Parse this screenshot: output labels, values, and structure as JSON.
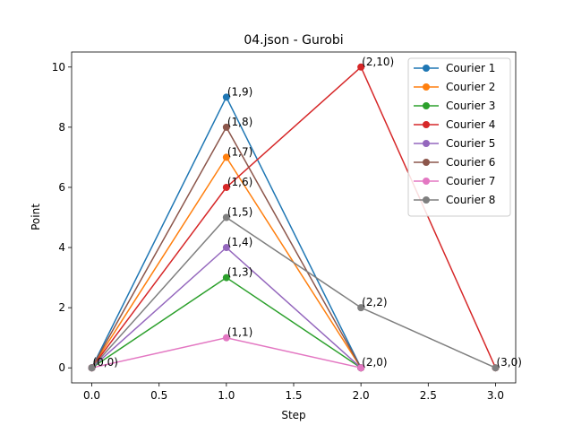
{
  "chart_data": {
    "type": "line",
    "title": "04.json - Gurobi",
    "xlabel": "Step",
    "ylabel": "Point",
    "xlim": [
      -0.15,
      3.15
    ],
    "ylim": [
      -0.5,
      10.5
    ],
    "xticks": [
      0.0,
      0.5,
      1.0,
      1.5,
      2.0,
      2.5,
      3.0
    ],
    "xtick_labels": [
      "0.0",
      "0.5",
      "1.0",
      "1.5",
      "2.0",
      "2.5",
      "3.0"
    ],
    "yticks": [
      0,
      2,
      4,
      6,
      8,
      10
    ],
    "ytick_labels": [
      "0",
      "2",
      "4",
      "6",
      "8",
      "10"
    ],
    "grid": false,
    "legend_position": "top-right",
    "series": [
      {
        "name": "Courier 1",
        "color": "#1f77b4",
        "x": [
          0,
          1,
          2
        ],
        "y": [
          0,
          9,
          0
        ]
      },
      {
        "name": "Courier 2",
        "color": "#ff7f0e",
        "x": [
          0,
          1,
          2
        ],
        "y": [
          0,
          7,
          0
        ]
      },
      {
        "name": "Courier 3",
        "color": "#2ca02c",
        "x": [
          0,
          1,
          2
        ],
        "y": [
          0,
          3,
          0
        ]
      },
      {
        "name": "Courier 4",
        "color": "#d62728",
        "x": [
          0,
          1,
          2,
          3
        ],
        "y": [
          0,
          6,
          10,
          0
        ]
      },
      {
        "name": "Courier 5",
        "color": "#9467bd",
        "x": [
          0,
          1,
          2
        ],
        "y": [
          0,
          4,
          0
        ]
      },
      {
        "name": "Courier 6",
        "color": "#8c564b",
        "x": [
          0,
          1,
          2
        ],
        "y": [
          0,
          8,
          0
        ]
      },
      {
        "name": "Courier 7",
        "color": "#e377c2",
        "x": [
          0,
          1,
          2
        ],
        "y": [
          0,
          1,
          0
        ]
      },
      {
        "name": "Courier 8",
        "color": "#7f7f7f",
        "x": [
          0,
          1,
          2,
          3
        ],
        "y": [
          0,
          5,
          2,
          0
        ]
      }
    ],
    "annotations": [
      {
        "text": "(0,0)",
        "x": 0,
        "y": 0
      },
      {
        "text": "(1,9)",
        "x": 1,
        "y": 9
      },
      {
        "text": "(1,8)",
        "x": 1,
        "y": 8
      },
      {
        "text": "(1,7)",
        "x": 1,
        "y": 7
      },
      {
        "text": "(1,6)",
        "x": 1,
        "y": 6
      },
      {
        "text": "(1,5)",
        "x": 1,
        "y": 5
      },
      {
        "text": "(1,4)",
        "x": 1,
        "y": 4
      },
      {
        "text": "(1,3)",
        "x": 1,
        "y": 3
      },
      {
        "text": "(1,1)",
        "x": 1,
        "y": 1
      },
      {
        "text": "(2,10)",
        "x": 2,
        "y": 10
      },
      {
        "text": "(2,2)",
        "x": 2,
        "y": 2
      },
      {
        "text": "(2,0)",
        "x": 2,
        "y": 0
      },
      {
        "text": "(3,0)",
        "x": 3,
        "y": 0
      }
    ]
  }
}
